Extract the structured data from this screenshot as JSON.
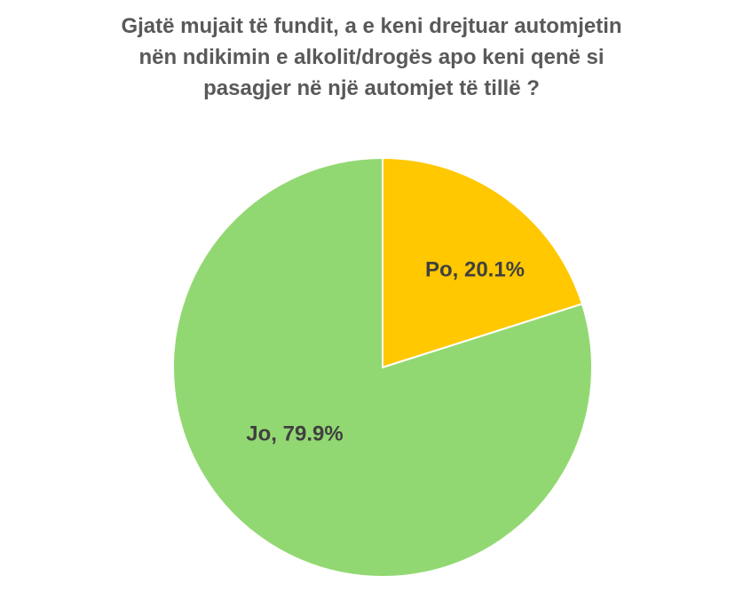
{
  "chart_data": {
    "type": "pie",
    "title_lines": [
      "Gjatë mujait të fundit, a e keni drejtuar automjetin",
      "nën ndikimin e alkolit/drogës apo keni qenë si",
      "pasagjer në një automjet të tillë ?"
    ],
    "slices": [
      {
        "label": "Po, 20.1%",
        "value": 20.1,
        "color": "#FFC800"
      },
      {
        "label": "Jo, 79.9%",
        "value": 79.9,
        "color": "#92D872"
      }
    ],
    "legend": "none"
  }
}
